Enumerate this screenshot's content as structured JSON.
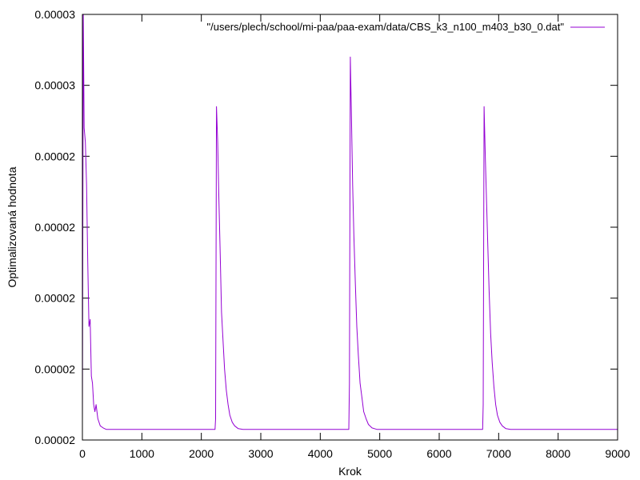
{
  "chart_data": {
    "type": "line",
    "xlabel": "Krok",
    "ylabel": "Optimalizovaná hodnota",
    "xlim": [
      0,
      9000
    ],
    "ylim": [
      0,
      6
    ],
    "x_ticks": [
      0,
      1000,
      2000,
      3000,
      4000,
      5000,
      6000,
      7000,
      8000,
      9000
    ],
    "y_ticks": [
      {
        "value": 0,
        "label": "0.00002"
      },
      {
        "value": 1,
        "label": "0.00002"
      },
      {
        "value": 2,
        "label": "0.00002"
      },
      {
        "value": 3,
        "label": "0.00002"
      },
      {
        "value": 4,
        "label": "0.00002"
      },
      {
        "value": 5,
        "label": "0.00003"
      },
      {
        "value": 6,
        "label": "0.00003"
      }
    ],
    "grid": false,
    "legend_position": "top-right",
    "series": [
      {
        "name": "\"/users/plech/school/mi-paa/paa-exam/data/CBS_k3_n100_m403_b30_0.dat\"",
        "color": "#9400d3",
        "points": [
          [
            0,
            0.25
          ],
          [
            15,
            6.0
          ],
          [
            30,
            4.4
          ],
          [
            50,
            4.2
          ],
          [
            70,
            3.6
          ],
          [
            90,
            2.5
          ],
          [
            110,
            1.6
          ],
          [
            130,
            1.7
          ],
          [
            150,
            0.9
          ],
          [
            170,
            0.8
          ],
          [
            190,
            0.5
          ],
          [
            210,
            0.4
          ],
          [
            230,
            0.5
          ],
          [
            260,
            0.3
          ],
          [
            300,
            0.2
          ],
          [
            350,
            0.17
          ],
          [
            400,
            0.15
          ],
          [
            500,
            0.15
          ],
          [
            2230,
            0.15
          ],
          [
            2240,
            0.3
          ],
          [
            2255,
            4.7
          ],
          [
            2275,
            4.2
          ],
          [
            2295,
            3.4
          ],
          [
            2315,
            2.7
          ],
          [
            2340,
            1.8
          ],
          [
            2365,
            1.4
          ],
          [
            2390,
            1.0
          ],
          [
            2420,
            0.7
          ],
          [
            2450,
            0.5
          ],
          [
            2480,
            0.35
          ],
          [
            2520,
            0.25
          ],
          [
            2560,
            0.2
          ],
          [
            2620,
            0.16
          ],
          [
            2700,
            0.15
          ],
          [
            4480,
            0.15
          ],
          [
            4490,
            0.8
          ],
          [
            4505,
            5.4
          ],
          [
            4525,
            4.5
          ],
          [
            4545,
            3.6
          ],
          [
            4565,
            2.9
          ],
          [
            4590,
            2.2
          ],
          [
            4615,
            1.6
          ],
          [
            4640,
            1.2
          ],
          [
            4670,
            0.8
          ],
          [
            4700,
            0.6
          ],
          [
            4730,
            0.4
          ],
          [
            4770,
            0.3
          ],
          [
            4810,
            0.22
          ],
          [
            4870,
            0.17
          ],
          [
            4950,
            0.15
          ],
          [
            6730,
            0.15
          ],
          [
            6740,
            0.5
          ],
          [
            6755,
            4.7
          ],
          [
            6775,
            4.0
          ],
          [
            6795,
            3.4
          ],
          [
            6815,
            2.8
          ],
          [
            6840,
            2.1
          ],
          [
            6865,
            1.5
          ],
          [
            6890,
            1.1
          ],
          [
            6920,
            0.75
          ],
          [
            6950,
            0.5
          ],
          [
            6980,
            0.35
          ],
          [
            7020,
            0.25
          ],
          [
            7060,
            0.2
          ],
          [
            7120,
            0.16
          ],
          [
            7200,
            0.15
          ],
          [
            9000,
            0.15
          ]
        ]
      }
    ]
  }
}
